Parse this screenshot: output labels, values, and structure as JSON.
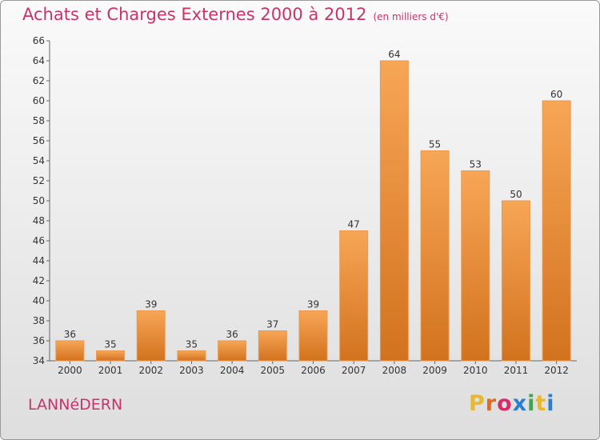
{
  "header": {
    "title": "Achats et Charges Externes 2000 à 2012",
    "unit": "(en milliers d'€)"
  },
  "commune": "LANNéDERN",
  "logo": {
    "text": "Proxiti",
    "colors": [
      "#e8b830",
      "#e06a1e",
      "#d92a6a",
      "#2a7fd0",
      "#3aa847",
      "#e8b830",
      "#2a7fd0"
    ]
  },
  "colors": {
    "bar_top": "#f7a656",
    "bar_bottom": "#d2721e",
    "accent": "#c8336b"
  },
  "chart_data": {
    "type": "bar",
    "categories": [
      "2000",
      "2001",
      "2002",
      "2003",
      "2004",
      "2005",
      "2006",
      "2007",
      "2008",
      "2009",
      "2010",
      "2011",
      "2012"
    ],
    "values": [
      36,
      35,
      39,
      35,
      36,
      37,
      39,
      47,
      64,
      55,
      53,
      50,
      60
    ],
    "ylim": [
      34,
      66
    ],
    "yticks": [
      34,
      36,
      38,
      40,
      42,
      44,
      46,
      48,
      50,
      52,
      54,
      56,
      58,
      60,
      62,
      64,
      66
    ],
    "grid": false,
    "data_labels": true
  }
}
